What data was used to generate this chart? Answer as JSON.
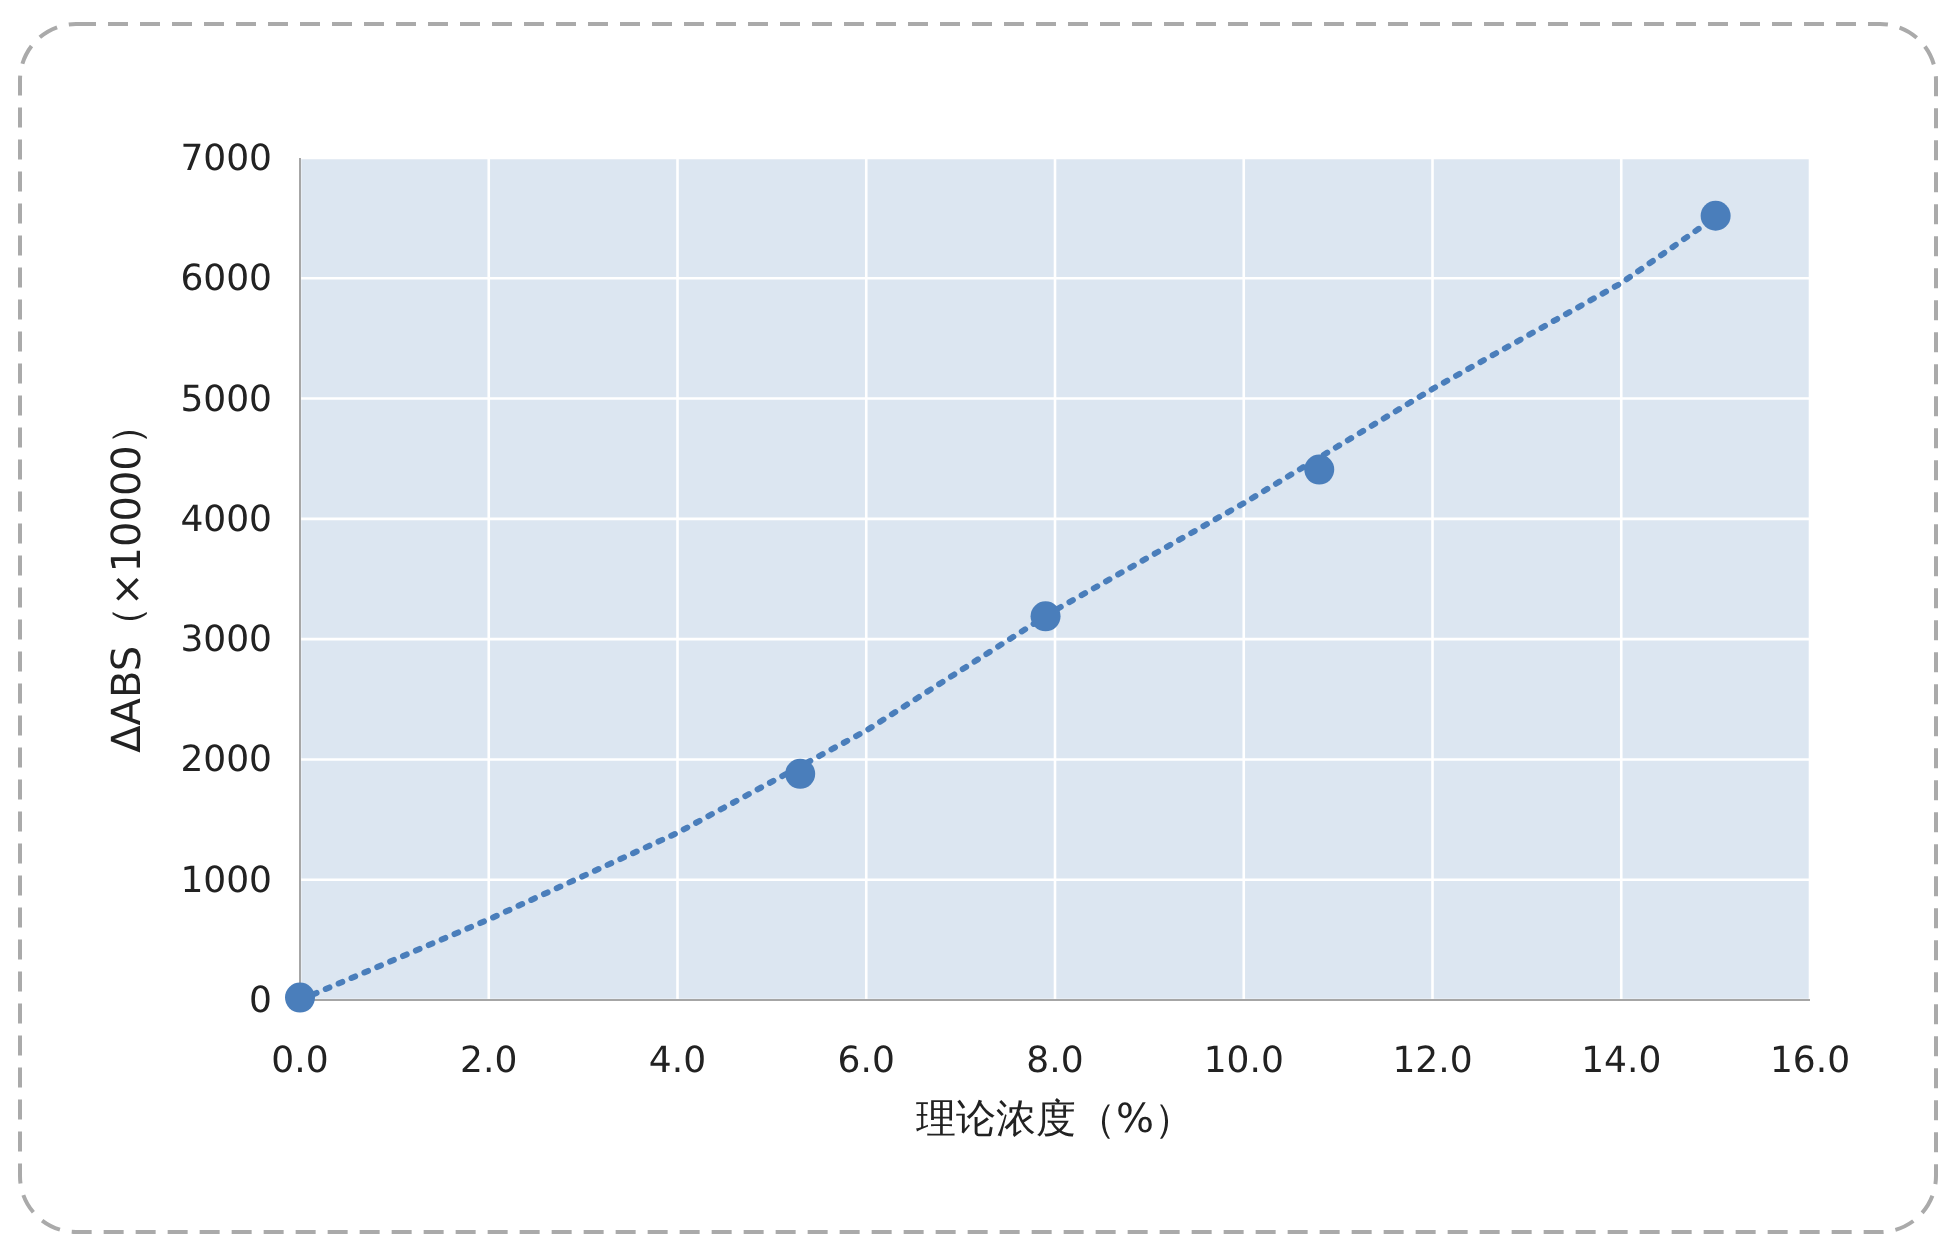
{
  "chart_data": {
    "type": "scatter",
    "xlabel": "理论浓度（%）",
    "ylabel": "ΔABS（×10000）",
    "xlim": [
      0,
      16
    ],
    "ylim": [
      0,
      7000
    ],
    "xticks": [
      {
        "value": 0,
        "label": "0.0"
      },
      {
        "value": 2,
        "label": "2.0"
      },
      {
        "value": 4,
        "label": "4.0"
      },
      {
        "value": 6,
        "label": "6.0"
      },
      {
        "value": 8,
        "label": "8.0"
      },
      {
        "value": 10,
        "label": "10.0"
      },
      {
        "value": 12,
        "label": "12.0"
      },
      {
        "value": 14,
        "label": "14.0"
      },
      {
        "value": 16,
        "label": "16.0"
      }
    ],
    "yticks": [
      0,
      1000,
      2000,
      3000,
      4000,
      5000,
      6000,
      7000
    ],
    "grid": true,
    "series": [
      {
        "type": "line",
        "color": "#4a7ebb",
        "line_style": "dotted",
        "marker": "none",
        "x": [
          0,
          2,
          4,
          6,
          8,
          10,
          12,
          14,
          15
        ],
        "values": [
          0,
          670,
          1390,
          2240,
          3240,
          4130,
          5080,
          5960,
          6510
        ]
      },
      {
        "type": "scatter",
        "color": "#4a7ebb",
        "marker": "circle",
        "x": [
          0,
          5.3,
          7.9,
          10.8,
          15.0
        ],
        "values": [
          20,
          1880,
          3190,
          4410,
          6520
        ]
      }
    ]
  }
}
